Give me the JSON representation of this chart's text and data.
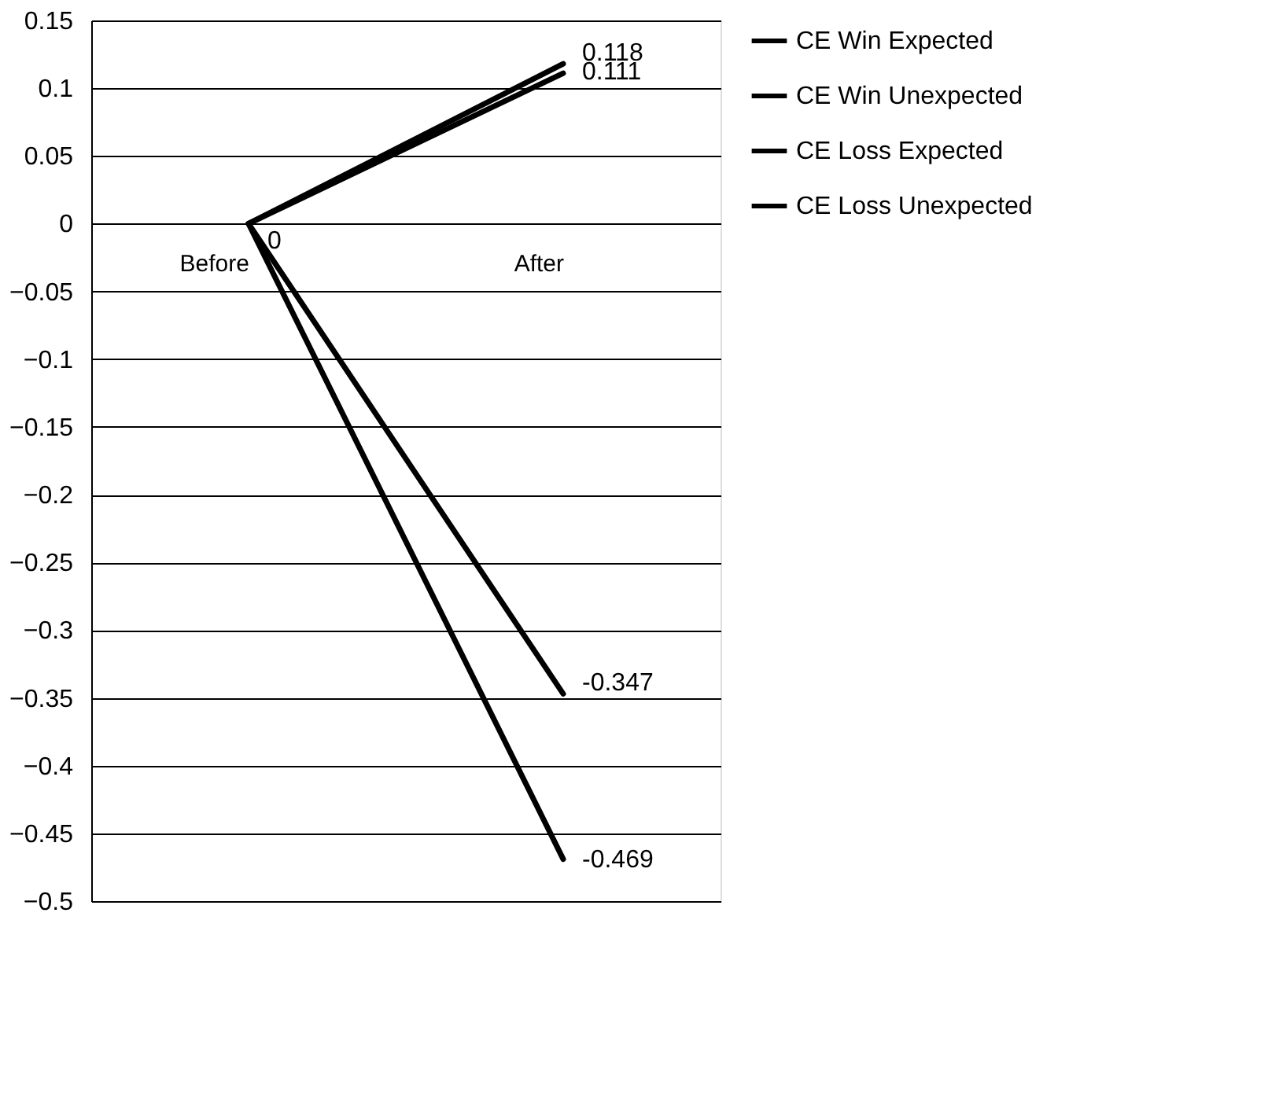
{
  "chart_data": {
    "type": "line",
    "categories": [
      "Before",
      "After"
    ],
    "series": [
      {
        "name": "CE Win Expected",
        "color": "#000000",
        "values": [
          0,
          0.118
        ],
        "value_labels": [
          "0",
          "0.118"
        ]
      },
      {
        "name": "CE Win Unexpected",
        "color": "#000000",
        "values": [
          0,
          0.111
        ],
        "value_labels": [
          null,
          "0.111"
        ]
      },
      {
        "name": "CE Loss Expected",
        "color": "#000000",
        "values": [
          0,
          -0.347
        ],
        "value_labels": [
          null,
          "-0.347"
        ]
      },
      {
        "name": "CE Loss Unexpected",
        "color": "#000000",
        "values": [
          0,
          -0.469
        ],
        "value_labels": [
          null,
          "-0.469"
        ]
      }
    ],
    "ylim": [
      -0.5,
      0.15
    ],
    "yticks": [
      0.15,
      0.1,
      0.05,
      0,
      -0.05,
      -0.1,
      -0.15,
      -0.2,
      -0.25,
      -0.3,
      -0.35,
      -0.4,
      -0.45,
      -0.5
    ],
    "grid": "y",
    "legend": "right",
    "marker": "none",
    "line_style": "solid"
  }
}
